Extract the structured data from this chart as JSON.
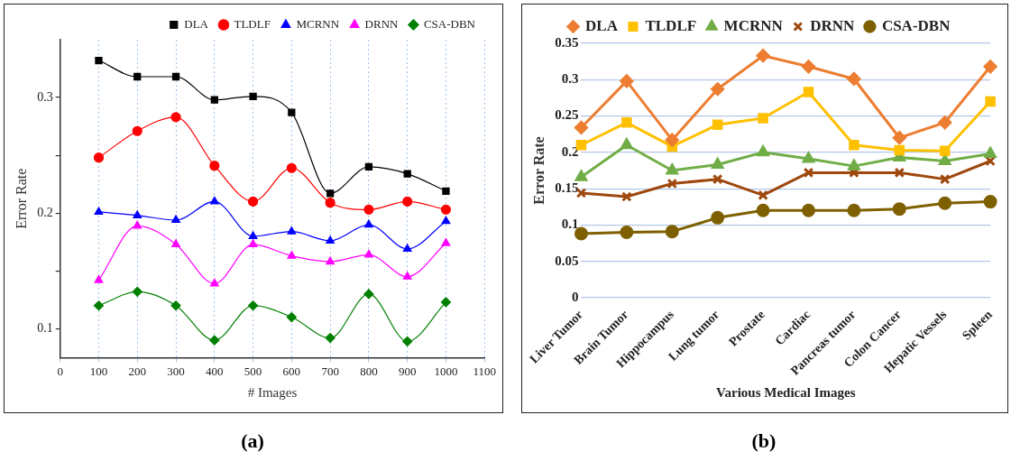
{
  "chart_data": [
    {
      "type": "line",
      "xlabel": "# Images",
      "ylabel": "Error Rate",
      "annotations": [
        "(a)"
      ],
      "x": [
        100,
        200,
        300,
        400,
        500,
        600,
        700,
        800,
        900,
        1000
      ],
      "xlim": [
        0,
        1100
      ],
      "xticks": [
        0,
        100,
        200,
        300,
        400,
        500,
        600,
        700,
        800,
        900,
        1000,
        1100
      ],
      "ylim": [
        0.075,
        0.35
      ],
      "yticks": [
        0.1,
        {
          "value": 0.15,
          "label": null
        },
        0.2,
        {
          "value": 0.25,
          "label": null
        },
        0.3
      ],
      "grid": "x",
      "legend": "top right",
      "series": [
        {
          "name": "DLA",
          "color": "#000000",
          "marker": "square",
          "values": [
            0.332,
            0.318,
            0.318,
            0.298,
            0.301,
            0.287,
            0.217,
            0.24,
            0.234,
            0.219
          ]
        },
        {
          "name": "TLDLF",
          "color": "#ff0000",
          "marker": "circle",
          "values": [
            0.248,
            0.271,
            0.283,
            0.241,
            0.21,
            0.239,
            0.209,
            0.203,
            0.21,
            0.203
          ]
        },
        {
          "name": "MCRNN",
          "color": "#0000ff",
          "marker": "triangle",
          "values": [
            0.201,
            0.198,
            0.194,
            0.21,
            0.18,
            0.184,
            0.176,
            0.19,
            0.169,
            0.193
          ]
        },
        {
          "name": "DRNN",
          "color": "#ff00ff",
          "marker": "triangle",
          "values": [
            0.142,
            0.189,
            0.173,
            0.139,
            0.173,
            0.163,
            0.158,
            0.164,
            0.145,
            0.174
          ]
        },
        {
          "name": "CSA-DBN",
          "color": "#008000",
          "marker": "diamond",
          "values": [
            0.12,
            0.132,
            0.12,
            0.09,
            0.12,
            0.11,
            0.092,
            0.13,
            0.089,
            0.123
          ]
        }
      ]
    },
    {
      "type": "line",
      "xlabel": "Various Medical Images",
      "ylabel": "Error Rate",
      "annotations": [
        "(b)"
      ],
      "categories": [
        "Liver Tumor",
        "Brain Tumor",
        "Hippocampus",
        "Lung tumor",
        "Prostate",
        "Cardiac",
        "Pancreas tumor",
        "Colon Cancer",
        "Hepatic Vessels",
        "Spleen"
      ],
      "ylim": [
        0,
        0.35
      ],
      "yticks": [
        0,
        0.05,
        0.1,
        0.15,
        0.2,
        0.25,
        0.3,
        0.35
      ],
      "grid": "y",
      "legend": "top",
      "series": [
        {
          "name": "DLA",
          "color": "#ed7d31",
          "marker": "diamond",
          "values": [
            0.234,
            0.298,
            0.217,
            0.287,
            0.333,
            0.318,
            0.301,
            0.22,
            0.241,
            0.318
          ]
        },
        {
          "name": "TLDLF",
          "color": "#ffc000",
          "marker": "square",
          "values": [
            0.21,
            0.241,
            0.208,
            0.238,
            0.247,
            0.283,
            0.21,
            0.203,
            0.202,
            0.27
          ]
        },
        {
          "name": "MCRNN",
          "color": "#70ad47",
          "marker": "triangle",
          "values": [
            0.166,
            0.21,
            0.175,
            0.183,
            0.2,
            0.191,
            0.181,
            0.193,
            0.188,
            0.198
          ]
        },
        {
          "name": "DRNN",
          "color": "#9e480e",
          "marker": "cross",
          "values": [
            0.144,
            0.139,
            0.157,
            0.163,
            0.141,
            0.172,
            0.172,
            0.172,
            0.163,
            0.188
          ]
        },
        {
          "name": "CSA-DBN",
          "color": "#7f6000",
          "marker": "circle",
          "values": [
            0.088,
            0.09,
            0.091,
            0.11,
            0.12,
            0.12,
            0.12,
            0.122,
            0.13,
            0.132
          ]
        }
      ]
    }
  ]
}
